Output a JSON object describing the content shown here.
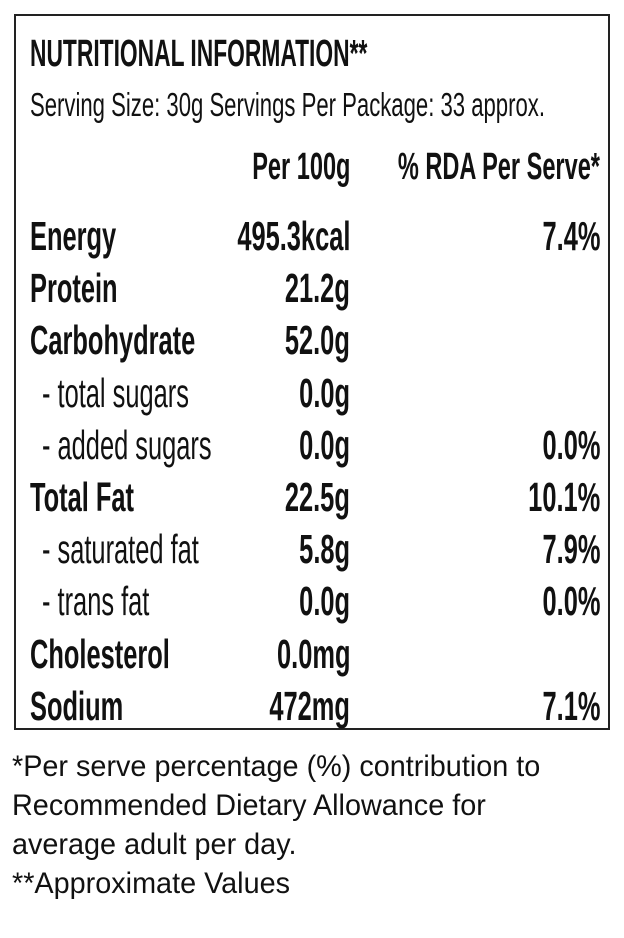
{
  "header": {
    "title": "NUTRITIONAL INFORMATION**",
    "serving": "Serving Size: 30g  Servings Per Package: 33 approx."
  },
  "columns": [
    "Per 100g",
    "% RDA Per Serve*"
  ],
  "rows": [
    {
      "label": "Energy",
      "per100g": "495.3kcal",
      "rda": "7.4%"
    },
    {
      "label": "Protein",
      "per100g": "21.2g"
    },
    {
      "label": "Carbohydrate",
      "per100g": "52.0g"
    },
    {
      "label": "- total sugars",
      "per100g": "0.0g"
    },
    {
      "label": "- added sugars",
      "per100g": "0.0g",
      "rda": "0.0%"
    },
    {
      "label": "Total Fat",
      "per100g": "22.5g",
      "rda": "10.1%"
    },
    {
      "label": "- saturated fat",
      "per100g": "5.8g",
      "rda": "7.9%"
    },
    {
      "label": "- trans fat",
      "per100g": "0.0g",
      "rda": "0.0%"
    },
    {
      "label": "Cholesterol",
      "per100g": "0.0mg"
    },
    {
      "label": "Sodium",
      "per100g": "472mg",
      "rda": "7.1%"
    }
  ],
  "footnotes": [
    "*Per serve percentage (%) contribution to",
    "Recommended Dietary Allowance for",
    "average adult per day.",
    "**Approximate Values"
  ]
}
